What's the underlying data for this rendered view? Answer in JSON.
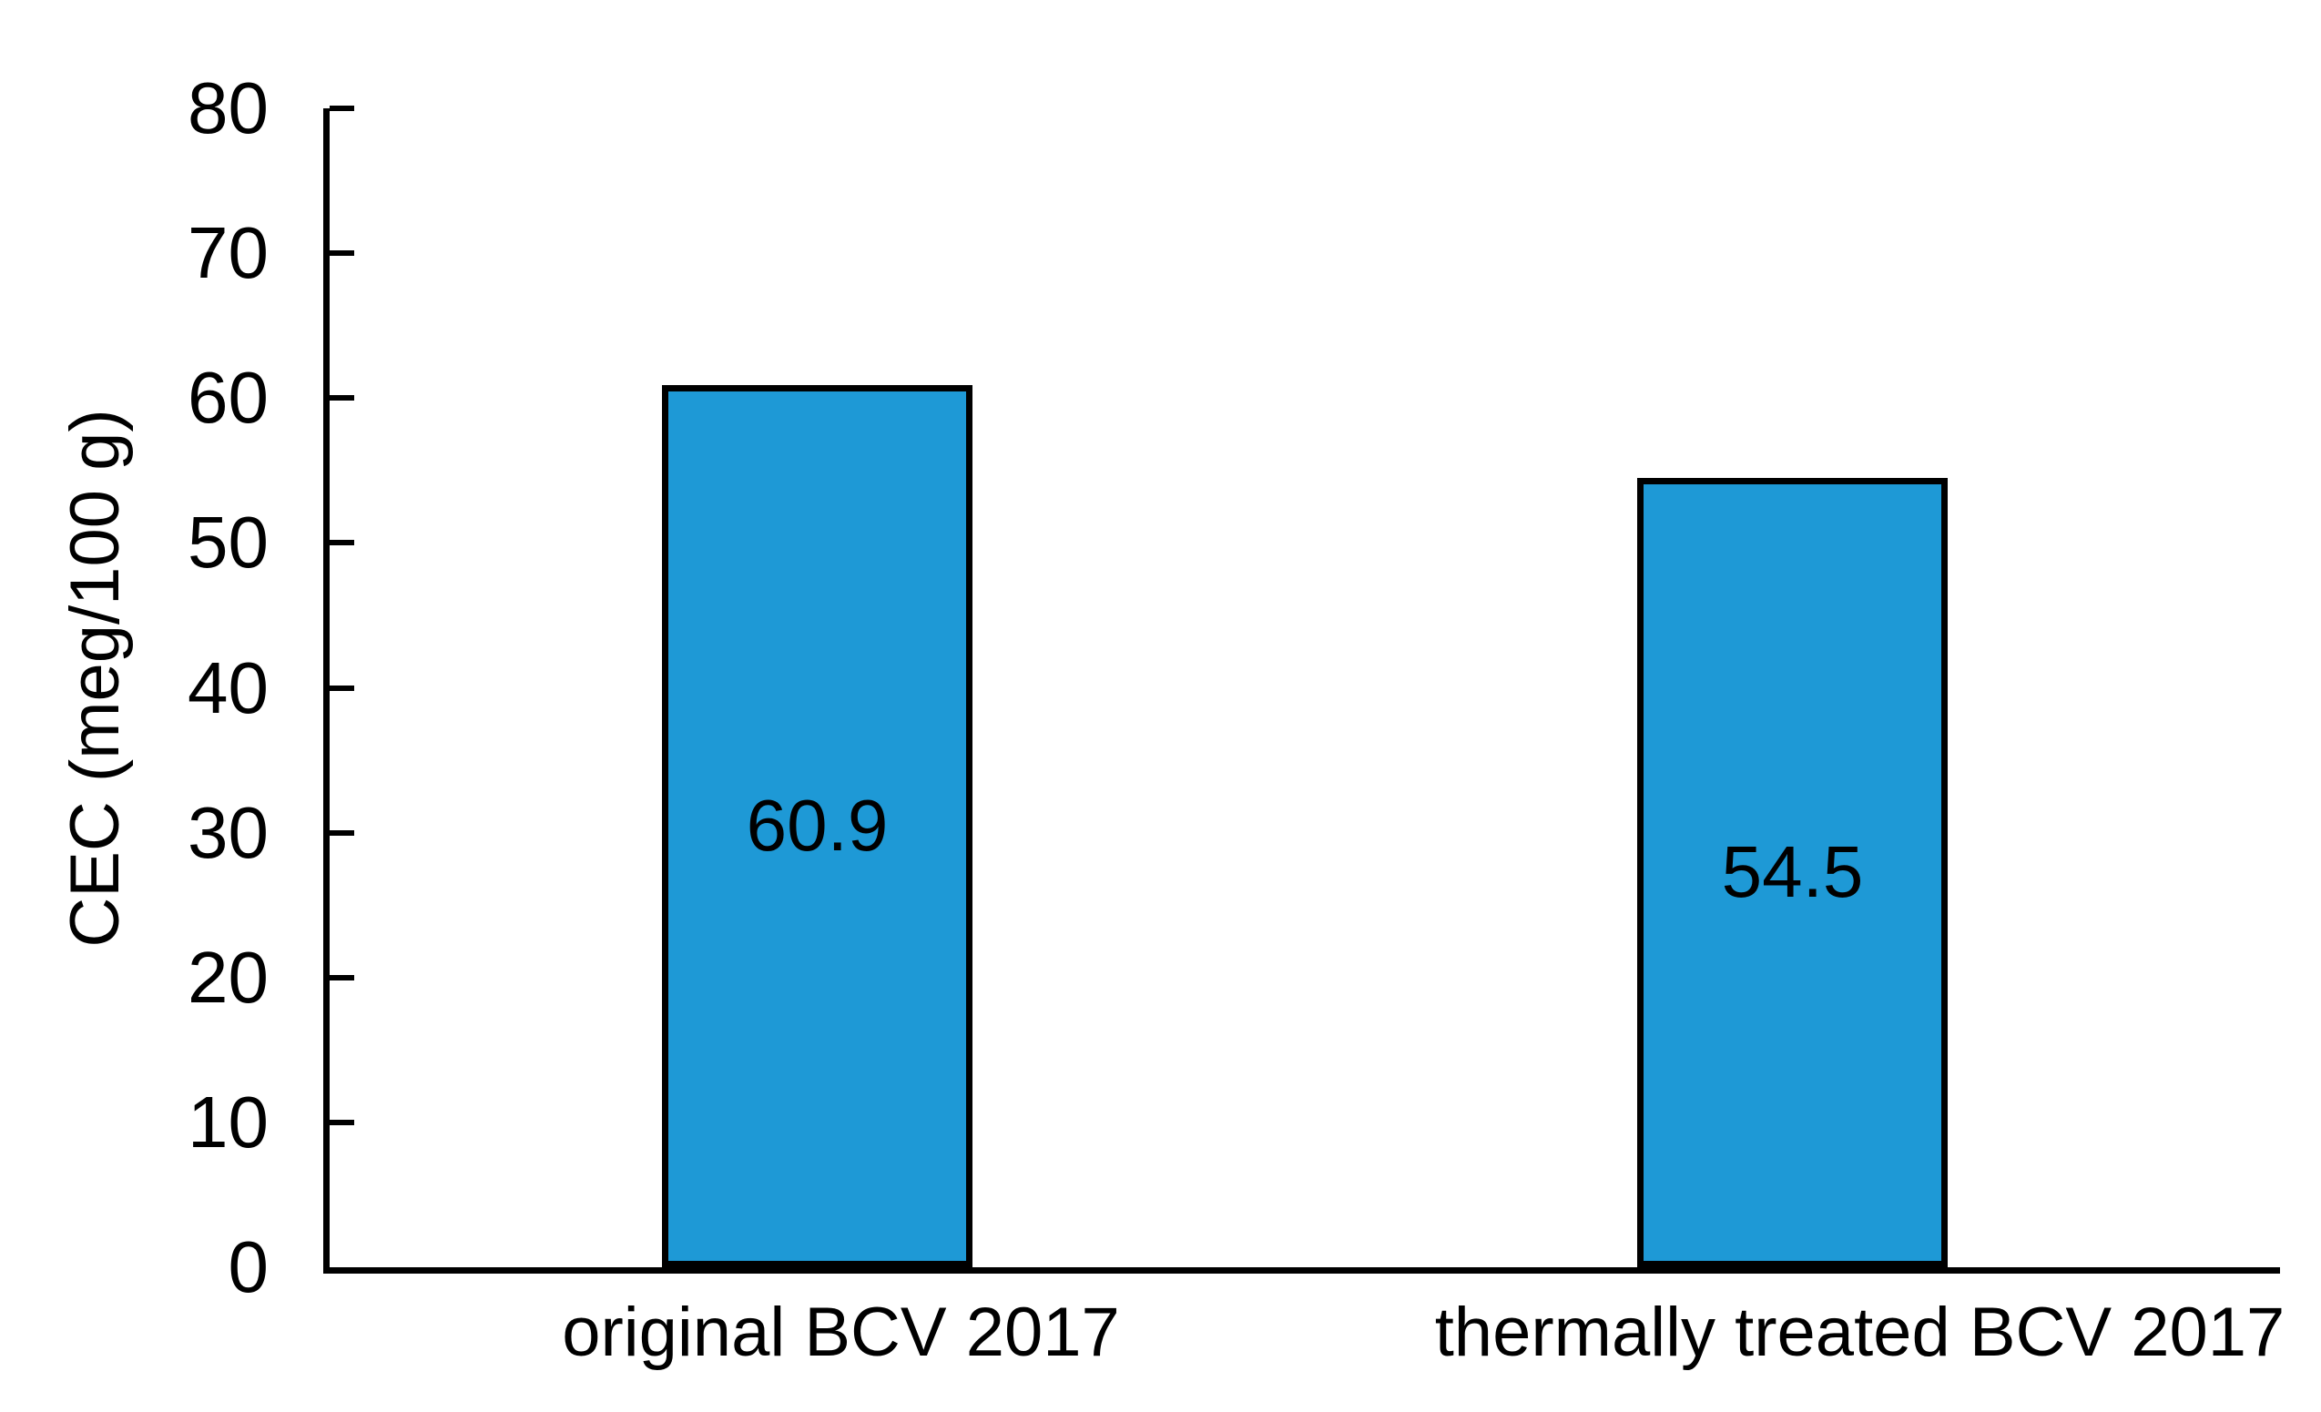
{
  "figure": {
    "background_color": "#FFFFFF"
  },
  "chart_data": {
    "type": "bar",
    "title": "",
    "categories": [
      "original BCV 2017",
      "thermally treated BCV 2017"
    ],
    "values": [
      60.9,
      54.5
    ],
    "bar_labels": [
      "60.9",
      "54.5"
    ],
    "xlabel": "",
    "ylabel": "CEC (meg/100 g)",
    "ylim": [
      0,
      80
    ],
    "ytick_step": 10,
    "ytick_labels": [
      "0",
      "10",
      "20",
      "30",
      "40",
      "50",
      "60",
      "70",
      "80"
    ],
    "grid": "off",
    "legend": "none",
    "bar_fill_color": "#1E99D6",
    "bar_border_color": "#000000",
    "axis_color": "#000000",
    "text_color": "#000000"
  }
}
